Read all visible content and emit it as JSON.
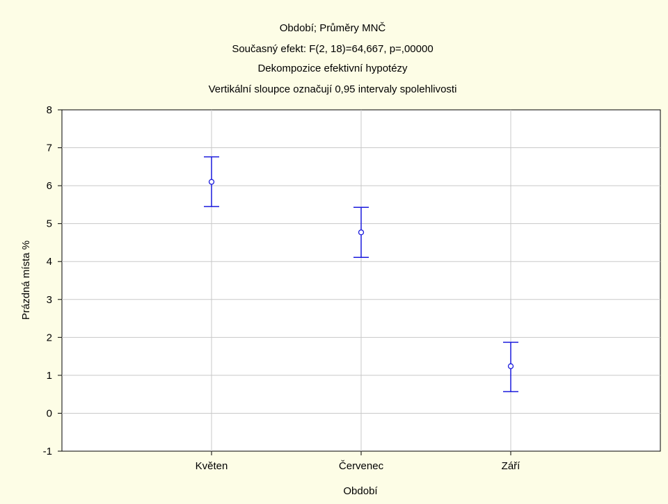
{
  "chart_data": {
    "type": "scatter",
    "title_lines": [
      "Období; Průměry MNČ",
      "Současný efekt: F(2, 18)=64,667, p=,00000",
      "Dekompozice efektivní hypotézy",
      "Vertikální sloupce označují 0,95 intervaly spolehlivosti"
    ],
    "xlabel": "Období",
    "ylabel": "Prázdná místa %",
    "categories": [
      "Květen",
      "Červenec",
      "Září"
    ],
    "y_ticks": [
      "-1",
      "0",
      "1",
      "2",
      "3",
      "4",
      "5",
      "6",
      "7",
      "8"
    ],
    "ylim": [
      -1,
      8
    ],
    "grid": true,
    "series": [
      {
        "means": [
          6.1,
          4.77,
          1.24
        ],
        "ci_lower": [
          5.45,
          4.11,
          0.57
        ],
        "ci_upper": [
          6.76,
          5.43,
          1.87
        ]
      }
    ],
    "colors": {
      "marker": "#1a1adc",
      "background": "#fdfde6",
      "plot_bg": "#ffffff",
      "grid": "#c8c8c8"
    }
  }
}
